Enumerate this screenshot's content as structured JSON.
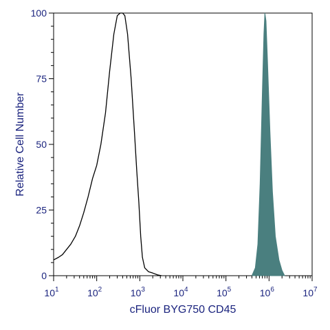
{
  "chart_data": {
    "type": "area",
    "xlabel": "cFluor BYG750 CD45",
    "ylabel": "Relative Cell Number",
    "x_scale": "log",
    "xlim": [
      10,
      10000000
    ],
    "ylim": [
      0,
      100
    ],
    "x_ticks": [
      {
        "base": "10",
        "exp": "1"
      },
      {
        "base": "10",
        "exp": "2"
      },
      {
        "base": "10",
        "exp": "3"
      },
      {
        "base": "10",
        "exp": "4"
      },
      {
        "base": "10",
        "exp": "5"
      },
      {
        "base": "10",
        "exp": "6"
      },
      {
        "base": "10",
        "exp": "7"
      }
    ],
    "y_ticks": [
      "0",
      "25",
      "50",
      "75",
      "100"
    ],
    "y_tick_values": [
      0,
      25,
      50,
      75,
      100
    ],
    "grid": false,
    "legend": "none",
    "series": [
      {
        "style": "outline",
        "color": "#000000",
        "points": [
          [
            10,
            6
          ],
          [
            13,
            7
          ],
          [
            16,
            8
          ],
          [
            20,
            10
          ],
          [
            25,
            12
          ],
          [
            32,
            15
          ],
          [
            40,
            19
          ],
          [
            50,
            24
          ],
          [
            63,
            30
          ],
          [
            80,
            37
          ],
          [
            100,
            42
          ],
          [
            125,
            50
          ],
          [
            160,
            62
          ],
          [
            200,
            78
          ],
          [
            250,
            92
          ],
          [
            300,
            99
          ],
          [
            350,
            100
          ],
          [
            400,
            100
          ],
          [
            450,
            99
          ],
          [
            520,
            92
          ],
          [
            630,
            75
          ],
          [
            750,
            55
          ],
          [
            850,
            40
          ],
          [
            950,
            28
          ],
          [
            1050,
            15
          ],
          [
            1150,
            7
          ],
          [
            1300,
            3
          ],
          [
            1600,
            1.5
          ],
          [
            2000,
            1
          ],
          [
            2600,
            0.3
          ],
          [
            3200,
            0
          ]
        ]
      },
      {
        "style": "filled",
        "color": "#4a7f7f",
        "points": [
          [
            400000,
            0
          ],
          [
            480000,
            3
          ],
          [
            550000,
            12
          ],
          [
            620000,
            35
          ],
          [
            700000,
            70
          ],
          [
            760000,
            92
          ],
          [
            800000,
            100
          ],
          [
            850000,
            97
          ],
          [
            920000,
            82
          ],
          [
            1050000,
            55
          ],
          [
            1200000,
            32
          ],
          [
            1400000,
            15
          ],
          [
            1700000,
            6
          ],
          [
            2000000,
            2
          ],
          [
            2300000,
            0
          ]
        ]
      }
    ]
  }
}
